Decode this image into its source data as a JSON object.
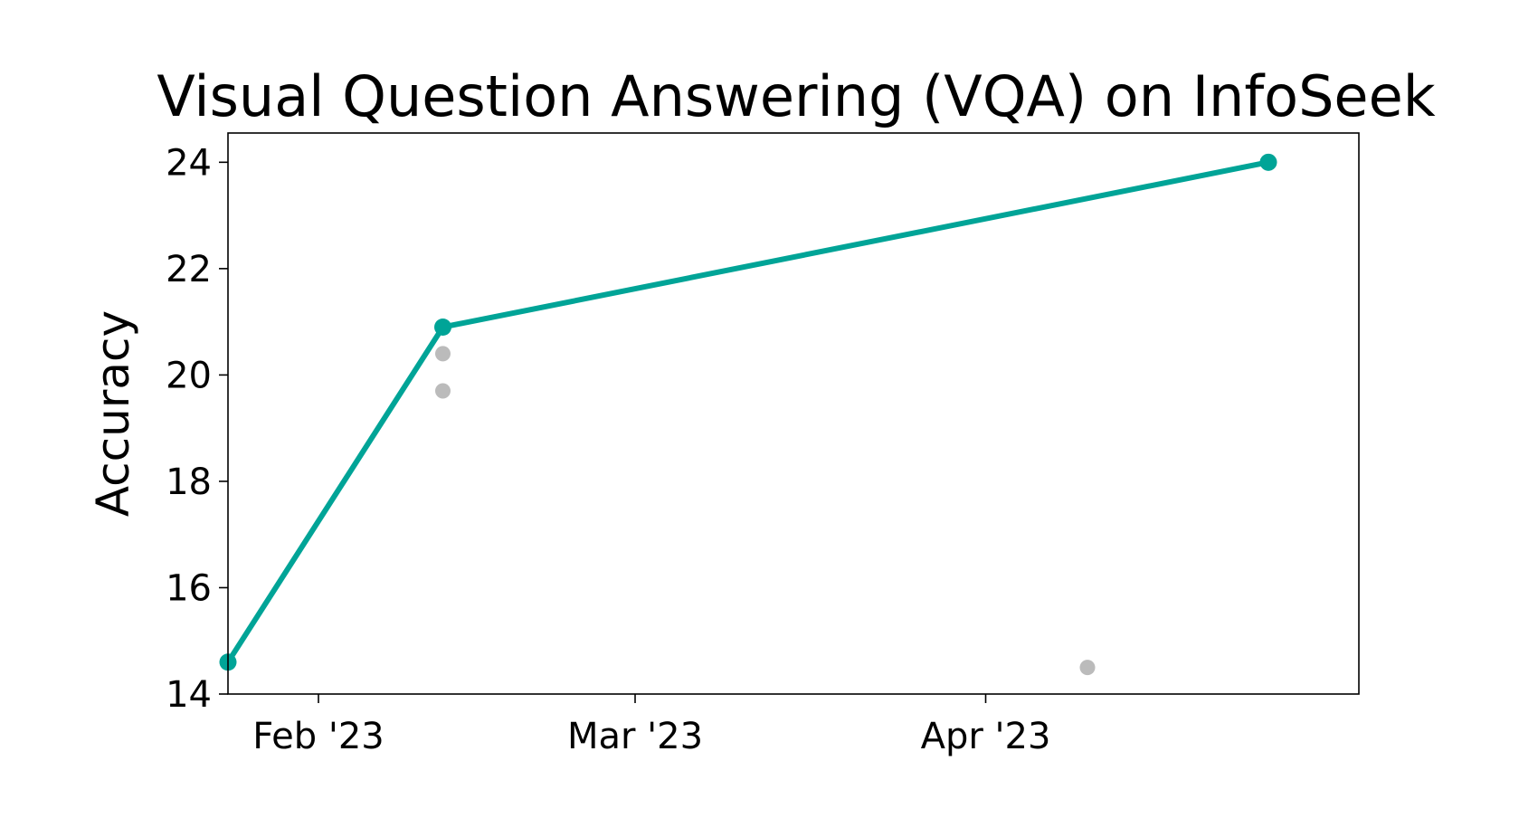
{
  "chart_data": {
    "type": "line",
    "title": "Visual Question Answering (VQA) on InfoSeek",
    "xlabel": "",
    "ylabel": "Accuracy",
    "x_axis": {
      "kind": "date",
      "range": [
        "2023-01-24",
        "2023-05-04"
      ],
      "ticks": [
        {
          "date": "2023-02-01",
          "label": "Feb '23"
        },
        {
          "date": "2023-03-01",
          "label": "Mar '23"
        },
        {
          "date": "2023-04-01",
          "label": "Apr '23"
        }
      ]
    },
    "y_axis": {
      "range": [
        14,
        24.55
      ],
      "ticks": [
        14,
        16,
        18,
        20,
        22,
        24
      ]
    },
    "grid": false,
    "legend": "none",
    "series": [
      {
        "role": "state-of-the-art",
        "color": "#00a497",
        "points": [
          {
            "x": "2023-01-24",
            "y": 14.6
          },
          {
            "x": "2023-02-12",
            "y": 20.9
          },
          {
            "x": "2023-04-26",
            "y": 24.0
          }
        ]
      },
      {
        "role": "other-results",
        "color": "#bbbbbb",
        "points": [
          {
            "x": "2023-02-12",
            "y": 20.4
          },
          {
            "x": "2023-02-12",
            "y": 19.7
          },
          {
            "x": "2023-04-10",
            "y": 14.5
          }
        ]
      }
    ]
  }
}
